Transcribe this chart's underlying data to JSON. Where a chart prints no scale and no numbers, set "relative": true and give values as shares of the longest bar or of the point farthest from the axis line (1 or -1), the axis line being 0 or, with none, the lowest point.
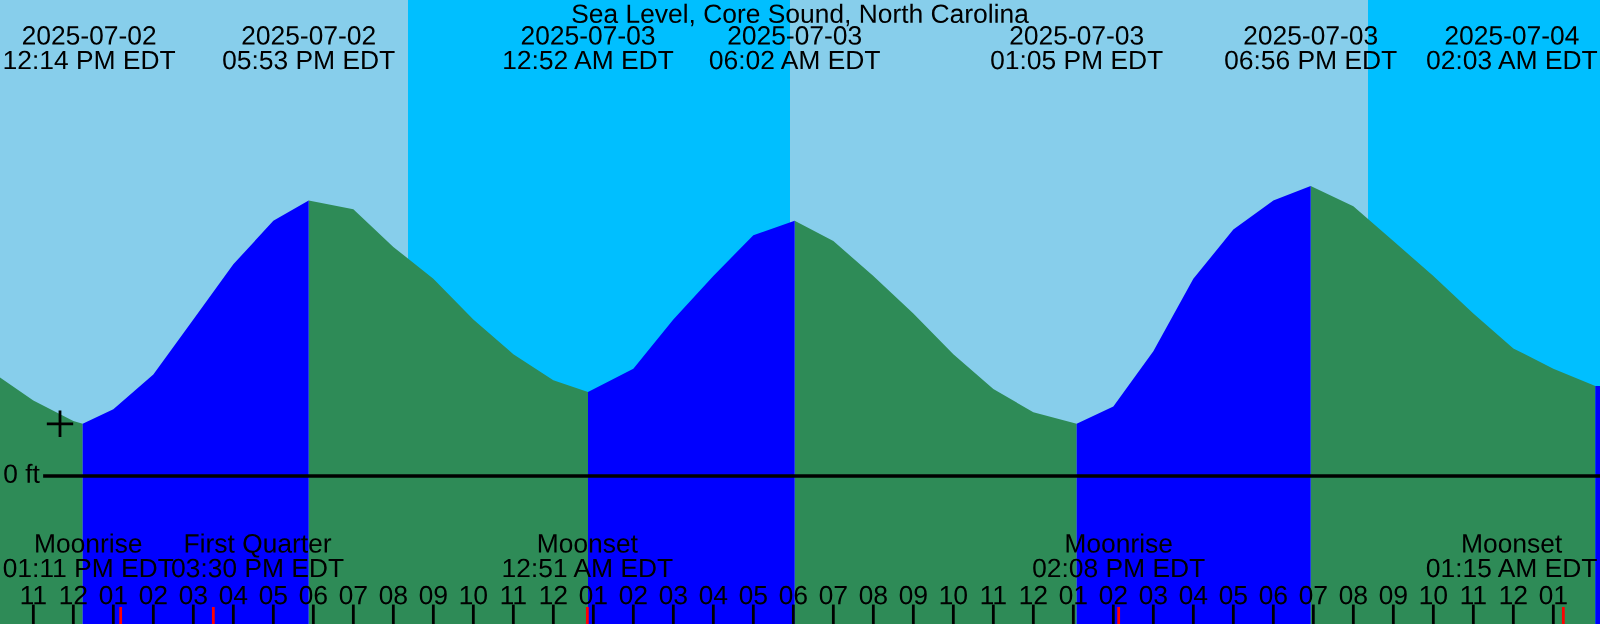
{
  "chart_data": {
    "type": "area",
    "title": "Sea Level, Core Sound, North Carolina",
    "relative": true,
    "xlim": [
      "2025-07-02T10:10",
      "2025-07-04T02:10"
    ],
    "xticks": [
      {
        "value": "2025-07-02T11:00",
        "label": "11"
      },
      {
        "value": "2025-07-02T12:00",
        "label": "12"
      },
      {
        "value": "2025-07-02T13:00",
        "label": "01"
      },
      {
        "value": "2025-07-02T14:00",
        "label": "02"
      },
      {
        "value": "2025-07-02T15:00",
        "label": "03"
      },
      {
        "value": "2025-07-02T16:00",
        "label": "04"
      },
      {
        "value": "2025-07-02T17:00",
        "label": "05"
      },
      {
        "value": "2025-07-02T18:00",
        "label": "06"
      },
      {
        "value": "2025-07-02T19:00",
        "label": "07"
      },
      {
        "value": "2025-07-02T20:00",
        "label": "08"
      },
      {
        "value": "2025-07-02T21:00",
        "label": "09"
      },
      {
        "value": "2025-07-02T22:00",
        "label": "10"
      },
      {
        "value": "2025-07-02T23:00",
        "label": "11"
      },
      {
        "value": "2025-07-03T00:00",
        "label": "12"
      },
      {
        "value": "2025-07-03T01:00",
        "label": "01"
      },
      {
        "value": "2025-07-03T02:00",
        "label": "02"
      },
      {
        "value": "2025-07-03T03:00",
        "label": "03"
      },
      {
        "value": "2025-07-03T04:00",
        "label": "04"
      },
      {
        "value": "2025-07-03T05:00",
        "label": "05"
      },
      {
        "value": "2025-07-03T06:00",
        "label": "06"
      },
      {
        "value": "2025-07-03T07:00",
        "label": "07"
      },
      {
        "value": "2025-07-03T08:00",
        "label": "08"
      },
      {
        "value": "2025-07-03T09:00",
        "label": "09"
      },
      {
        "value": "2025-07-03T10:00",
        "label": "10"
      },
      {
        "value": "2025-07-03T11:00",
        "label": "11"
      },
      {
        "value": "2025-07-03T12:00",
        "label": "12"
      },
      {
        "value": "2025-07-03T13:00",
        "label": "01"
      },
      {
        "value": "2025-07-03T14:00",
        "label": "02"
      },
      {
        "value": "2025-07-03T15:00",
        "label": "03"
      },
      {
        "value": "2025-07-03T16:00",
        "label": "04"
      },
      {
        "value": "2025-07-03T17:00",
        "label": "05"
      },
      {
        "value": "2025-07-03T18:00",
        "label": "06"
      },
      {
        "value": "2025-07-03T19:00",
        "label": "07"
      },
      {
        "value": "2025-07-03T20:00",
        "label": "08"
      },
      {
        "value": "2025-07-03T21:00",
        "label": "09"
      },
      {
        "value": "2025-07-03T22:00",
        "label": "10"
      },
      {
        "value": "2025-07-03T23:00",
        "label": "11"
      },
      {
        "value": "2025-07-04T00:00",
        "label": "12"
      },
      {
        "value": "2025-07-04T01:00",
        "label": "01"
      }
    ],
    "series": [
      {
        "color": "#2e8b57",
        "x": [
          "2025-07-02T10:10",
          "2025-07-02T11:00",
          "2025-07-02T12:00",
          "2025-07-02T12:14",
          "2025-07-02T15:00",
          "2025-07-02T17:53",
          "2025-07-02T19:00",
          "2025-07-02T20:00",
          "2025-07-02T21:00",
          "2025-07-02T22:00",
          "2025-07-02T23:00",
          "2025-07-03T00:00",
          "2025-07-03T00:52",
          "2025-07-03T03:00",
          "2025-07-03T06:02",
          "2025-07-03T07:00",
          "2025-07-03T08:00",
          "2025-07-03T09:00",
          "2025-07-03T10:00",
          "2025-07-03T11:00",
          "2025-07-03T12:00",
          "2025-07-03T13:05",
          "2025-07-03T16:00",
          "2025-07-03T18:56",
          "2025-07-03T20:00",
          "2025-07-03T21:00",
          "2025-07-03T22:00",
          "2025-07-03T23:00",
          "2025-07-04T00:00",
          "2025-07-04T01:00",
          "2025-07-04T02:03"
        ],
        "values": [
          0.34,
          0.26,
          0.19,
          0.18,
          null,
          0.95,
          0.92,
          0.79,
          0.68,
          0.54,
          0.42,
          0.33,
          0.29,
          null,
          0.88,
          0.81,
          0.69,
          0.56,
          0.42,
          0.3,
          0.22,
          0.18,
          null,
          1.0,
          0.93,
          0.81,
          0.69,
          0.56,
          0.44,
          0.37,
          0.31
        ]
      },
      {
        "color": "#0000ff",
        "x": [
          "2025-07-02T12:14",
          "2025-07-02T13:00",
          "2025-07-02T14:00",
          "2025-07-02T15:00",
          "2025-07-02T16:00",
          "2025-07-02T17:00",
          "2025-07-02T17:53",
          "2025-07-02T21:00",
          "2025-07-03T00:52",
          "2025-07-03T02:00",
          "2025-07-03T03:00",
          "2025-07-03T04:00",
          "2025-07-03T05:00",
          "2025-07-03T06:02",
          "2025-07-03T09:00",
          "2025-07-03T13:05",
          "2025-07-03T14:00",
          "2025-07-03T15:00",
          "2025-07-03T16:00",
          "2025-07-03T17:00",
          "2025-07-03T18:00",
          "2025-07-03T18:56",
          "2025-07-03T22:00",
          "2025-07-04T02:03",
          "2025-07-04T02:10"
        ],
        "values": [
          0.18,
          0.23,
          0.35,
          0.54,
          0.73,
          0.88,
          0.95,
          null,
          0.29,
          0.37,
          0.54,
          0.69,
          0.83,
          0.88,
          null,
          0.18,
          0.24,
          0.43,
          0.68,
          0.85,
          0.95,
          1.0,
          null,
          0.31,
          0.31
        ]
      },
      {
        "type": "scatter",
        "color": "#000000",
        "marker": "cross",
        "x": [
          "2025-07-02T11:40"
        ],
        "values": [
          0.18
        ]
      }
    ],
    "bands": [
      {
        "axis": "x",
        "from": "2025-07-02T20:22",
        "to": "2025-07-03T05:55",
        "color": "#00bfff"
      },
      {
        "axis": "x",
        "from": "2025-07-03T20:22",
        "to": "2025-07-04T02:10",
        "color": "#00bfff"
      }
    ],
    "ref_lines": [
      {
        "axis": "y",
        "value": 0,
        "label": "0 ft",
        "color": "#000000"
      },
      {
        "axis": "x",
        "value": "2025-07-02T13:11",
        "label": "Moonrise\n01:11 PM EDT",
        "color": "#ff0000"
      },
      {
        "axis": "x",
        "value": "2025-07-02T15:30",
        "label": "First Quarter\n03:30 PM EDT",
        "color": "#ff0000"
      },
      {
        "axis": "x",
        "value": "2025-07-03T00:51",
        "label": "Moonset\n12:51 AM EDT",
        "color": "#ff0000"
      },
      {
        "axis": "x",
        "value": "2025-07-03T14:08",
        "label": "Moonrise\n02:08 PM EDT",
        "color": "#ff0000"
      },
      {
        "axis": "x",
        "value": "2025-07-04T01:15",
        "label": "Moonset\n01:15 AM EDT",
        "color": "#ff0000"
      }
    ],
    "annotations": [
      "2025-07-02\n12:14 PM EDT",
      "2025-07-02\n05:53 PM EDT",
      "2025-07-03\n12:52 AM EDT",
      "2025-07-03\n06:02 AM EDT",
      "2025-07-03\n01:05 PM EDT",
      "2025-07-03\n06:56 PM EDT",
      "2025-07-04\n02:03 AM EDT"
    ]
  }
}
